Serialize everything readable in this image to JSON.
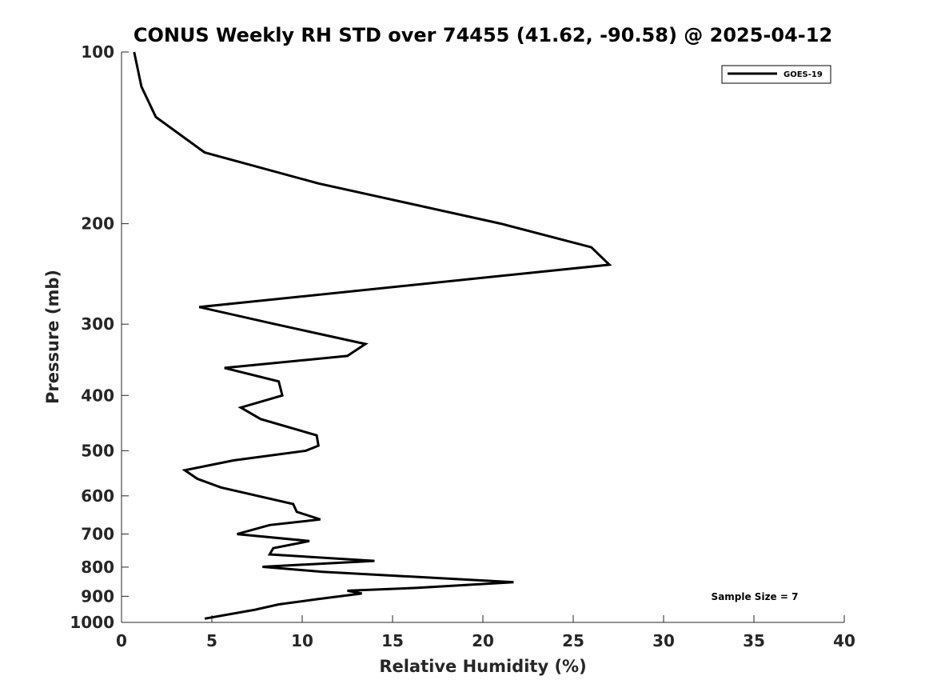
{
  "chart_data": {
    "type": "line",
    "title": "CONUS Weekly RH STD over 74455 (41.62, -90.58) @ 2025-04-12",
    "xlabel": "Relative Humidity (%)",
    "ylabel": "Pressure (mb)",
    "xlim": [
      0,
      40
    ],
    "ylim": [
      1000,
      100
    ],
    "y_scale": "log",
    "y_reversed": true,
    "grid": false,
    "x_ticks": [
      "0",
      "5",
      "10",
      "15",
      "20",
      "25",
      "30",
      "35",
      "40"
    ],
    "y_ticks": [
      "100",
      "200",
      "300",
      "400",
      "500",
      "600",
      "700",
      "800",
      "900",
      "1000"
    ],
    "legend": {
      "position": "top-right",
      "entries": [
        "GOES-19"
      ]
    },
    "annotation": "Sample Size = 7",
    "series": [
      {
        "name": "GOES-19",
        "color": "#000000",
        "points": [
          [
            0.7,
            100
          ],
          [
            1.1,
            115
          ],
          [
            1.9,
            130
          ],
          [
            4.6,
            150
          ],
          [
            10.9,
            170
          ],
          [
            21.0,
            200
          ],
          [
            26.0,
            220
          ],
          [
            27.0,
            236
          ],
          [
            4.3,
            280
          ],
          [
            8.5,
            300
          ],
          [
            13.5,
            325
          ],
          [
            12.5,
            341
          ],
          [
            5.7,
            358
          ],
          [
            8.7,
            378
          ],
          [
            8.9,
            400
          ],
          [
            6.6,
            420
          ],
          [
            7.7,
            440
          ],
          [
            10.8,
            470
          ],
          [
            10.9,
            490
          ],
          [
            10.2,
            500
          ],
          [
            6.2,
            520
          ],
          [
            3.5,
            541
          ],
          [
            4.2,
            560
          ],
          [
            5.5,
            580
          ],
          [
            9.5,
            620
          ],
          [
            9.7,
            640
          ],
          [
            11.0,
            660
          ],
          [
            8.2,
            675
          ],
          [
            6.4,
            700
          ],
          [
            10.4,
            720
          ],
          [
            8.4,
            741
          ],
          [
            8.2,
            760
          ],
          [
            14.0,
            780
          ],
          [
            7.8,
            799
          ],
          [
            11.1,
            815
          ],
          [
            21.7,
            850
          ],
          [
            16.3,
            870
          ],
          [
            12.5,
            880
          ],
          [
            13.3,
            890
          ],
          [
            10.9,
            910
          ],
          [
            8.7,
            930
          ],
          [
            7.4,
            950
          ],
          [
            4.6,
            985
          ]
        ]
      }
    ]
  }
}
